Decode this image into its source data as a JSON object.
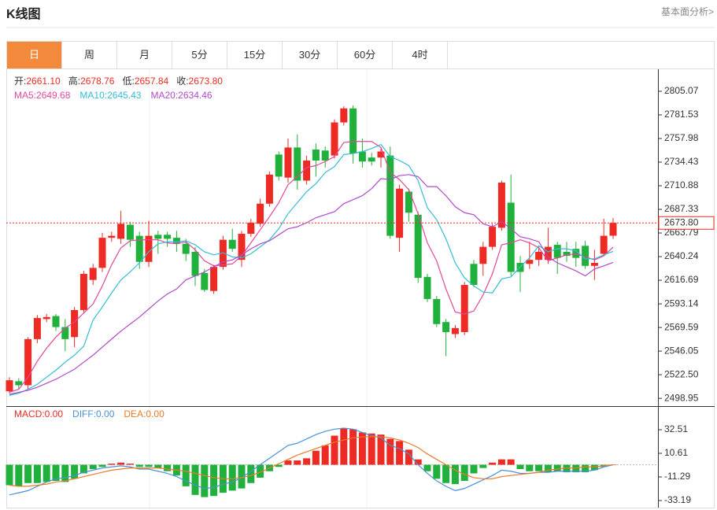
{
  "header": {
    "title": "K线图",
    "link": "基本面分析>"
  },
  "tabs": {
    "items": [
      "日",
      "周",
      "月",
      "5分",
      "15分",
      "30分",
      "60分",
      "4时"
    ],
    "active": 0
  },
  "chart_data": [
    {
      "type": "candlestick",
      "info": [
        {
          "label": "开:",
          "value": "2661.10"
        },
        {
          "label": "高:",
          "value": "2678.76"
        },
        {
          "label": "低:",
          "value": "2657.84"
        },
        {
          "label": "收:",
          "value": "2673.80"
        }
      ],
      "open": [
        2506,
        2516,
        2512,
        2558,
        2578,
        2581,
        2570,
        2560,
        2587,
        2617,
        2629,
        2659,
        2658,
        2672,
        2661,
        2635,
        2662,
        2662,
        2659,
        2653,
        2645,
        2624,
        2606,
        2630,
        2657,
        2637,
        2663,
        2673,
        2693,
        2742,
        2719,
        2749,
        2716,
        2747,
        2746,
        2741,
        2774,
        2788,
        2745,
        2739,
        2739,
        2741,
        2659,
        2705,
        2682,
        2620,
        2598,
        2575,
        2563,
        2565,
        2633,
        2633,
        2650,
        2669,
        2694,
        2634,
        2633,
        2637,
        2637,
        2652,
        2645,
        2648,
        2651,
        2631,
        2643,
        2661.1
      ],
      "high": [
        2520,
        2519,
        2560,
        2582,
        2583,
        2583,
        2578,
        2590,
        2626,
        2633,
        2664,
        2665,
        2686,
        2675,
        2665,
        2676,
        2666,
        2665,
        2666,
        2658,
        2650,
        2628,
        2632,
        2661,
        2668,
        2666,
        2678,
        2698,
        2725,
        2745,
        2758,
        2762,
        2741,
        2753,
        2750,
        2777,
        2790,
        2791,
        2758,
        2744,
        2748,
        2750,
        2712,
        2708,
        2685,
        2623,
        2601,
        2578,
        2572,
        2615,
        2637,
        2655,
        2673,
        2716,
        2722,
        2641,
        2655,
        2650,
        2669,
        2655,
        2655,
        2655,
        2656,
        2647,
        2678,
        2678.76
      ],
      "low": [
        2504,
        2508,
        2508,
        2554,
        2575,
        2566,
        2546,
        2550,
        2584,
        2612,
        2625,
        2655,
        2653,
        2650,
        2628,
        2630,
        2643,
        2650,
        2645,
        2636,
        2611,
        2605,
        2603,
        2627,
        2645,
        2630,
        2660,
        2670,
        2690,
        2716,
        2714,
        2707,
        2712,
        2720,
        2729,
        2738,
        2771,
        2733,
        2729,
        2731,
        2729,
        2658,
        2645,
        2675,
        2614,
        2595,
        2570,
        2541,
        2559,
        2562,
        2610,
        2621,
        2647,
        2666,
        2621,
        2605,
        2628,
        2631,
        2633,
        2623,
        2635,
        2630,
        2628,
        2617,
        2641,
        2657.84
      ],
      "close": [
        2517,
        2512,
        2558,
        2579,
        2580,
        2570,
        2558,
        2587,
        2623,
        2629,
        2659,
        2661,
        2673,
        2657,
        2635,
        2661,
        2658,
        2658,
        2653,
        2643,
        2621,
        2607,
        2630,
        2657,
        2648,
        2663,
        2674,
        2693,
        2722,
        2720,
        2749,
        2716,
        2736,
        2736,
        2736,
        2774,
        2788,
        2743,
        2735,
        2735,
        2745,
        2661,
        2708,
        2684,
        2619,
        2598,
        2573,
        2565,
        2569,
        2612,
        2612,
        2650,
        2670,
        2714,
        2625,
        2625,
        2637,
        2645,
        2650,
        2639,
        2641,
        2639,
        2631,
        2634,
        2661,
        2673.8
      ],
      "up_color": "#ee2a24",
      "down_color": "#1fb13c",
      "ma": [
        {
          "name": "MA5:",
          "value_label": "2649.68",
          "color": "#e2479a",
          "values": [
            2505,
            2508,
            2520,
            2536,
            2549,
            2560,
            2569,
            2575,
            2584,
            2593,
            2611,
            2632,
            2649,
            2656,
            2657,
            2657,
            2657,
            2654,
            2653,
            2655,
            2647,
            2636,
            2631,
            2632,
            2633,
            2641,
            2654,
            2667,
            2680,
            2694,
            2712,
            2720,
            2729,
            2731,
            2735,
            2740,
            2754,
            2755,
            2755,
            2755,
            2749,
            2724,
            2717,
            2707,
            2683,
            2654,
            2636,
            2608,
            2585,
            2583,
            2586,
            2602,
            2623,
            2652,
            2654,
            2657,
            2654,
            2649,
            2636,
            2639,
            2642,
            2643,
            2640,
            2637,
            2641,
            2649.68
          ]
        },
        {
          "name": "MA10:",
          "value_label": "2645.43",
          "color": "#34bcd6",
          "values": [
            2502,
            2504,
            2508,
            2513,
            2520,
            2527,
            2535,
            2542,
            2551,
            2577,
            2590,
            2604,
            2617,
            2625,
            2634,
            2645,
            2653,
            2655,
            2655,
            2656,
            2652,
            2645,
            2642,
            2644,
            2640,
            2639,
            2643,
            2650,
            2657,
            2668,
            2683,
            2694,
            2705,
            2713,
            2724,
            2730,
            2742,
            2743,
            2745,
            2748,
            2752,
            2740,
            2736,
            2731,
            2716,
            2689,
            2677,
            2658,
            2634,
            2619,
            2611,
            2605,
            2604,
            2618,
            2620,
            2630,
            2639,
            2651,
            2645,
            2648,
            2648,
            2646,
            2638,
            2638,
            2642,
            2645.43
          ]
        },
        {
          "name": "MA20:",
          "value_label": "2634.46",
          "color": "#b04ac9",
          "values": [
            2503,
            2505,
            2507,
            2510,
            2514,
            2518,
            2523,
            2528,
            2535,
            2542,
            2550,
            2558,
            2566,
            2573,
            2580,
            2588,
            2596,
            2603,
            2608,
            2617,
            2621,
            2625,
            2630,
            2635,
            2637,
            2642,
            2648,
            2653,
            2656,
            2662,
            2668,
            2670,
            2674,
            2679,
            2682,
            2685,
            2693,
            2697,
            2701,
            2708,
            2718,
            2717,
            2721,
            2722,
            2720,
            2710,
            2710,
            2701,
            2690,
            2684,
            2682,
            2673,
            2670,
            2675,
            2668,
            2660,
            2658,
            2655,
            2640,
            2634,
            2630,
            2626,
            2621,
            2628,
            2631,
            2634.46
          ]
        }
      ],
      "last_price": {
        "value": 2673.8,
        "label": "2673.80"
      },
      "ylim": [
        2492,
        2827
      ],
      "yticks": [
        2805.07,
        2781.53,
        2757.98,
        2734.43,
        2710.88,
        2687.33,
        2663.79,
        2640.24,
        2616.69,
        2593.14,
        2569.59,
        2546.05,
        {
          "value": 2522.5,
          "label": "2522.50"
        },
        2498.95
      ]
    },
    {
      "type": "macd",
      "series": [
        {
          "name": "MACD:",
          "value_label": "0.00",
          "color": "#ee2a24",
          "down_color": "#1fb13c",
          "values": [
            -19,
            -20,
            -17,
            -17,
            -16,
            -15,
            -16,
            -13,
            -8,
            -4,
            -2,
            1,
            2,
            1,
            -2,
            -2,
            -3,
            -6,
            -10,
            -20,
            -28,
            -30,
            -29,
            -26,
            -24,
            -22,
            -17,
            -12,
            -6,
            -2,
            4,
            4,
            6,
            13,
            18,
            27,
            34,
            33,
            30,
            29,
            28,
            24,
            22,
            14,
            5,
            -6,
            -13,
            -17,
            -18,
            -15,
            -8,
            -3,
            2,
            5,
            5,
            -4,
            -6,
            -6,
            -7,
            -6,
            -7,
            -7,
            -7,
            -5,
            -2,
            0
          ]
        },
        {
          "name": "DIFF:",
          "value_label": "0.00",
          "color": "#4a90d9",
          "values": [
            -28,
            -26,
            -24,
            -20,
            -16,
            -13,
            -12,
            -10,
            -7,
            -5,
            -3,
            -2,
            -1,
            -2,
            -4,
            -4,
            -6,
            -8,
            -11,
            -15,
            -19,
            -22,
            -21,
            -18,
            -16,
            -12,
            -6,
            0,
            6,
            12,
            18,
            20,
            24,
            28,
            31,
            33,
            34,
            33,
            30,
            27,
            25,
            18,
            15,
            10,
            0,
            -8,
            -15,
            -20,
            -24,
            -22,
            -18,
            -14,
            -10,
            -5,
            -6,
            -8,
            -8,
            -7,
            -7,
            -6,
            -6,
            -6,
            -6,
            -5,
            -2,
            0
          ]
        },
        {
          "name": "DEA:",
          "value_label": "0.00",
          "color": "#ec7a26",
          "values": [
            -19,
            -20,
            -20,
            -19,
            -18,
            -16,
            -15,
            -13,
            -11,
            -9,
            -7,
            -5,
            -4,
            -3,
            -3,
            -3,
            -3,
            -4,
            -5,
            -6,
            -8,
            -10,
            -12,
            -13,
            -13,
            -12,
            -10,
            -7,
            -3,
            1,
            5,
            9,
            12,
            15,
            18,
            21,
            23,
            25,
            26,
            26,
            26,
            25,
            23,
            20,
            16,
            10,
            5,
            0,
            -5,
            -9,
            -12,
            -13,
            -13,
            -11,
            -10,
            -9,
            -8,
            -7,
            -5,
            -4,
            -3,
            -3,
            -2,
            -2,
            -1,
            0
          ]
        }
      ],
      "ylim": [
        -39.8,
        53.7
      ],
      "yticks": [
        32.51,
        10.61,
        -11.29,
        -33.19
      ]
    }
  ]
}
